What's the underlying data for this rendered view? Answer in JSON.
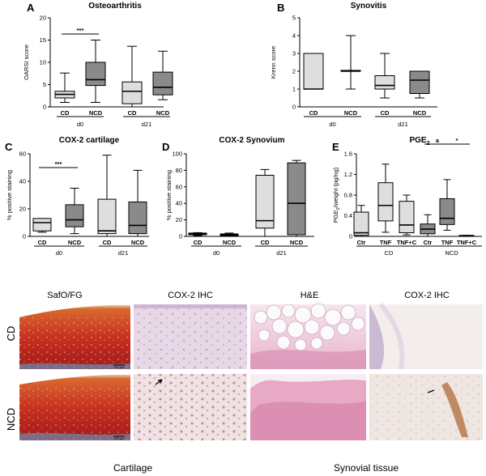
{
  "chart_data": [
    {
      "panel": "A",
      "type": "box",
      "title": "Osteoarthritis",
      "ylabel": "OARSI score",
      "ylim": [
        0,
        20
      ],
      "yticks": [
        0,
        5,
        10,
        15,
        20
      ],
      "categories": [
        "CD",
        "NCD",
        "CD",
        "NCD"
      ],
      "groups": [
        "d0",
        "d21"
      ],
      "boxes": [
        {
          "min": 1,
          "q1": 2,
          "median": 2.8,
          "q3": 3.5,
          "max": 7.6,
          "color": "#dedede"
        },
        {
          "min": 1,
          "q1": 4.8,
          "median": 6.1,
          "q3": 10,
          "max": 15,
          "color": "#8a8a8a"
        },
        {
          "min": 0,
          "q1": 0.7,
          "median": 3.5,
          "q3": 5.6,
          "max": 13.6,
          "color": "#dedede"
        },
        {
          "min": 1.6,
          "q1": 2.7,
          "median": 4.4,
          "q3": 7.8,
          "max": 12.5,
          "color": "#8a8a8a"
        }
      ],
      "significance": [
        {
          "from": 0,
          "to": 1,
          "label": "***"
        }
      ]
    },
    {
      "panel": "B",
      "type": "box",
      "title": "Synovitis",
      "ylabel": "Krenn score",
      "ylim": [
        0,
        5
      ],
      "yticks": [
        0,
        1,
        2,
        3,
        4,
        5
      ],
      "categories": [
        "CD",
        "NCD",
        "CD",
        "NCD"
      ],
      "groups": [
        "d0",
        "d21"
      ],
      "boxes": [
        {
          "min": 1,
          "q1": 1,
          "median": 1,
          "q3": 3,
          "max": 3,
          "color": "#dedede"
        },
        {
          "min": 1,
          "q1": 2,
          "median": 2,
          "q3": 2.05,
          "max": 4,
          "color": "#8a8a8a"
        },
        {
          "min": 0.5,
          "q1": 1,
          "median": 1.2,
          "q3": 1.75,
          "max": 3,
          "color": "#dedede"
        },
        {
          "min": 0.5,
          "q1": 0.75,
          "median": 1.5,
          "q3": 2,
          "max": 2,
          "color": "#8a8a8a"
        }
      ],
      "significance": []
    },
    {
      "panel": "C",
      "type": "box",
      "title": "COX-2 cartilage",
      "ylabel": "% positive staining",
      "ylim": [
        0,
        60
      ],
      "yticks": [
        0,
        20,
        40,
        60
      ],
      "categories": [
        "CD",
        "NCD",
        "CD",
        "NCD"
      ],
      "groups": [
        "d0",
        "d21"
      ],
      "boxes": [
        {
          "min": 3,
          "q1": 4,
          "median": 10,
          "q3": 13,
          "max": 13,
          "color": "#dedede"
        },
        {
          "min": 2,
          "q1": 7,
          "median": 12,
          "q3": 23,
          "max": 35,
          "color": "#8a8a8a"
        },
        {
          "min": 0,
          "q1": 2,
          "median": 4,
          "q3": 27,
          "max": 59,
          "color": "#dedede"
        },
        {
          "min": 0,
          "q1": 2,
          "median": 8,
          "q3": 25,
          "max": 48,
          "color": "#8a8a8a"
        }
      ],
      "significance": [
        {
          "from": 0,
          "to": 1,
          "label": "***"
        }
      ]
    },
    {
      "panel": "D",
      "type": "box",
      "title": "COX-2 Synovium",
      "ylabel": "% positive staining",
      "ylim": [
        0,
        100
      ],
      "yticks": [
        0,
        20,
        40,
        60,
        80,
        100
      ],
      "categories": [
        "CD",
        "NCD",
        "CD",
        "NCD"
      ],
      "groups": [
        "d0",
        "d21"
      ],
      "boxes": [
        {
          "min": 1,
          "q1": 2,
          "median": 3,
          "q3": 4,
          "max": 4.5,
          "color": "#8a8a8a"
        },
        {
          "min": 0.5,
          "q1": 1,
          "median": 2,
          "q3": 3,
          "max": 4,
          "color": "#8a8a8a"
        },
        {
          "min": 0,
          "q1": 10,
          "median": 19,
          "q3": 74,
          "max": 81,
          "color": "#dedede"
        },
        {
          "min": 0,
          "q1": 2,
          "median": 40,
          "q3": 89,
          "max": 92,
          "color": "#8a8a8a"
        }
      ],
      "significance": []
    },
    {
      "panel": "E",
      "type": "box",
      "title": "PGE2",
      "ylabel": "PGE2/weight (pg/ng)",
      "ylim": [
        0,
        1.6
      ],
      "yticks": [
        "0",
        "0.4",
        "0.8",
        "1.2",
        "1.6"
      ],
      "categories": [
        "Ctr",
        "TNF",
        "TNF+C",
        "Ctr",
        "TNF",
        "TNF+C"
      ],
      "groups": [
        "CD",
        "NCD"
      ],
      "boxes": [
        {
          "min": 0,
          "q1": 0.02,
          "median": 0.07,
          "q3": 0.47,
          "max": 0.6,
          "color": "#dedede"
        },
        {
          "min": 0.08,
          "q1": 0.3,
          "median": 0.6,
          "q3": 1.04,
          "max": 1.4,
          "color": "#dedede"
        },
        {
          "min": 0.03,
          "q1": 0.07,
          "median": 0.22,
          "q3": 0.68,
          "max": 0.8,
          "color": "#dedede"
        },
        {
          "min": 0,
          "q1": 0.05,
          "median": 0.14,
          "q3": 0.24,
          "max": 0.42,
          "color": "#8a8a8a"
        },
        {
          "min": 0.12,
          "q1": 0.23,
          "median": 0.35,
          "q3": 0.73,
          "max": 1.1,
          "color": "#8a8a8a"
        },
        {
          "min": 0,
          "q1": 0,
          "median": 0.01,
          "q3": 0.02,
          "max": 0.02,
          "color": "#8a8a8a"
        }
      ],
      "significance": [
        {
          "from": 3,
          "to": 4,
          "label": "a"
        },
        {
          "from": 4,
          "to": 5,
          "label": "*"
        }
      ]
    }
  ],
  "panel_labels": {
    "A": "A",
    "B": "B",
    "C": "C",
    "D": "D",
    "E": "E"
  },
  "histology": {
    "columns": [
      "SafO/FG",
      "COX-2 IHC",
      "H&E",
      "COX-2 IHC"
    ],
    "rows": [
      "CD",
      "NCD"
    ],
    "footer": [
      "Cartilage",
      "Synovial tissue"
    ],
    "scalebar": "200 µm"
  }
}
